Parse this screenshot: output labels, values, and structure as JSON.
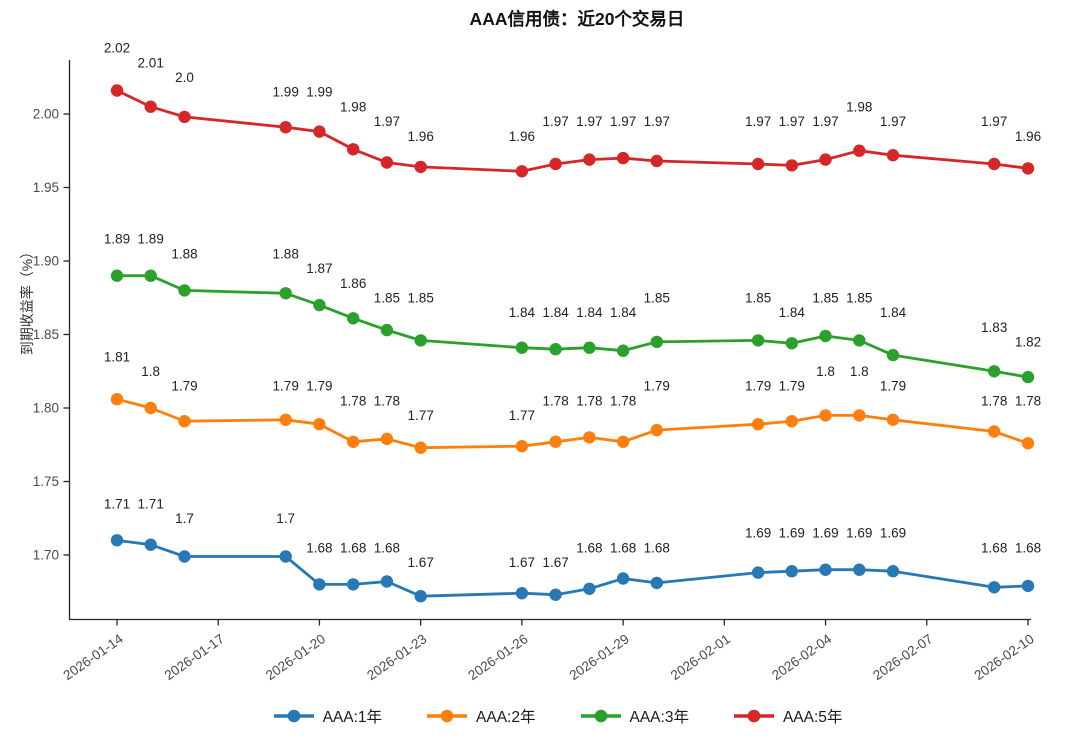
{
  "title": "AAA信用债：近20个交易日",
  "y_axis_label": "到期收益率（%）",
  "chart_data": {
    "type": "line",
    "title": "AAA信用债：近20个交易日",
    "ylabel": "到期收益率（%）",
    "xlabel": "",
    "grid": false,
    "legend_position": "bottom",
    "ylim": [
      1.656,
      2.039
    ],
    "y_tick_labels": [
      "2.00",
      "1.95",
      "1.90",
      "1.85",
      "1.80",
      "1.75",
      "1.70"
    ],
    "x_tick_labels": [
      "2026-01-14",
      "2026-01-17",
      "2026-01-20",
      "2026-01-23",
      "2026-01-26",
      "2026-01-29",
      "2026-02-01",
      "2026-02-04",
      "2026-02-07",
      "2026-02-10"
    ],
    "x": [
      "2026-01-14",
      "2026-01-15",
      "2026-01-16",
      "2026-01-19",
      "2026-01-20",
      "2026-01-21",
      "2026-01-22",
      "2026-01-23",
      "2026-01-26",
      "2026-01-27",
      "2026-01-28",
      "2026-01-29",
      "2026-01-30",
      "2026-02-02",
      "2026-02-03",
      "2026-02-04",
      "2026-02-05",
      "2026-02-06",
      "2026-02-09",
      "2026-02-10"
    ],
    "series": [
      {
        "name": "AAA:1年",
        "color": "#2878b5",
        "labels": [
          "1.71",
          "1.71",
          "1.7",
          "1.7",
          "1.68",
          "1.68",
          "1.68",
          "1.67",
          "1.67",
          "1.67",
          "1.68",
          "1.68",
          "1.68",
          "1.69",
          "1.69",
          "1.69",
          "1.69",
          "1.69",
          "1.68",
          "1.68"
        ],
        "values": [
          1.71,
          1.707,
          1.699,
          1.699,
          1.68,
          1.68,
          1.682,
          1.672,
          1.674,
          1.673,
          1.677,
          1.684,
          1.681,
          1.688,
          1.689,
          1.69,
          1.69,
          1.689,
          1.678,
          1.679
        ]
      },
      {
        "name": "AAA:2年",
        "color": "#ff7f0e",
        "labels": [
          "1.81",
          "1.8",
          "1.79",
          "1.79",
          "1.79",
          "1.78",
          "1.78",
          "1.77",
          "1.77",
          "1.78",
          "1.78",
          "1.78",
          "1.79",
          "1.79",
          "1.79",
          "1.8",
          "1.8",
          "1.79",
          "1.78",
          "1.78"
        ],
        "values": [
          1.806,
          1.8,
          1.791,
          1.792,
          1.789,
          1.777,
          1.779,
          1.773,
          1.774,
          1.777,
          1.78,
          1.777,
          1.785,
          1.789,
          1.791,
          1.795,
          1.795,
          1.792,
          1.784,
          1.776
        ]
      },
      {
        "name": "AAA:3年",
        "color": "#2ca02c",
        "labels": [
          "1.89",
          "1.89",
          "1.88",
          "1.88",
          "1.87",
          "1.86",
          "1.85",
          "1.85",
          "1.84",
          "1.84",
          "1.84",
          "1.84",
          "1.85",
          "1.85",
          "1.84",
          "1.85",
          "1.85",
          "1.84",
          "1.83",
          "1.82"
        ],
        "values": [
          1.89,
          1.89,
          1.88,
          1.878,
          1.87,
          1.861,
          1.853,
          1.846,
          1.841,
          1.84,
          1.841,
          1.839,
          1.845,
          1.846,
          1.844,
          1.849,
          1.846,
          1.836,
          1.825,
          1.821
        ]
      },
      {
        "name": "AAA:5年",
        "color": "#d62728",
        "labels": [
          "2.02",
          "2.01",
          "2.0",
          "1.99",
          "1.99",
          "1.98",
          "1.97",
          "1.96",
          "1.96",
          "1.97",
          "1.97",
          "1.97",
          "1.97",
          "1.97",
          "1.97",
          "1.97",
          "1.98",
          "1.97",
          "1.97",
          "1.96"
        ],
        "values": [
          2.016,
          2.005,
          1.998,
          1.991,
          1.988,
          1.976,
          1.967,
          1.964,
          1.961,
          1.966,
          1.969,
          1.97,
          1.968,
          1.966,
          1.965,
          1.969,
          1.975,
          1.972,
          1.966,
          1.963
        ]
      }
    ]
  }
}
